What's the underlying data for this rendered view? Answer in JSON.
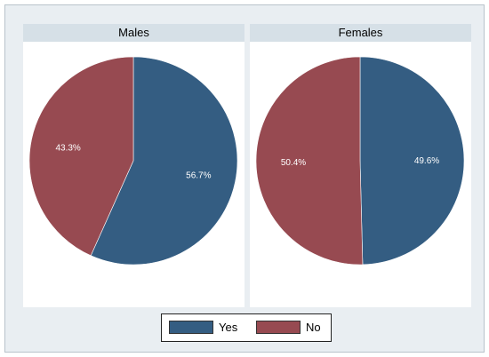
{
  "chart_data": [
    {
      "type": "pie",
      "title": "Males",
      "categories": [
        "Yes",
        "No"
      ],
      "values": [
        56.7,
        43.3
      ],
      "labels": [
        "56.7%",
        "43.3%"
      ],
      "colors": [
        "#345d82",
        "#974a51"
      ]
    },
    {
      "type": "pie",
      "title": "Females",
      "categories": [
        "Yes",
        "No"
      ],
      "values": [
        49.6,
        50.4
      ],
      "labels": [
        "49.6%",
        "50.4%"
      ],
      "colors": [
        "#345d82",
        "#974a51"
      ]
    }
  ],
  "legend": {
    "items": [
      {
        "label": "Yes",
        "color": "#345d82"
      },
      {
        "label": "No",
        "color": "#974a51"
      }
    ],
    "placement": "bottom"
  }
}
